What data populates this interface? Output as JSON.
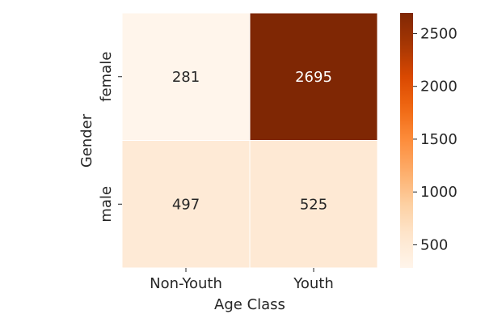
{
  "chart_data": {
    "type": "heatmap",
    "title": "",
    "xlabel": "Age Class",
    "ylabel": "Gender",
    "x_categories": [
      "Non-Youth",
      "Youth"
    ],
    "y_categories": [
      "female",
      "male"
    ],
    "values": [
      [
        281,
        2695
      ],
      [
        497,
        525
      ]
    ],
    "colormap": "Oranges",
    "colorbar": {
      "min": 281,
      "max": 2695,
      "ticks": [
        500,
        1000,
        1500,
        2000,
        2500
      ],
      "tick_labels": [
        "500",
        "1000",
        "1500",
        "2000",
        "2500"
      ]
    },
    "cell_label_colors": {
      "light": "#262626",
      "dark": "#ffffff"
    }
  }
}
